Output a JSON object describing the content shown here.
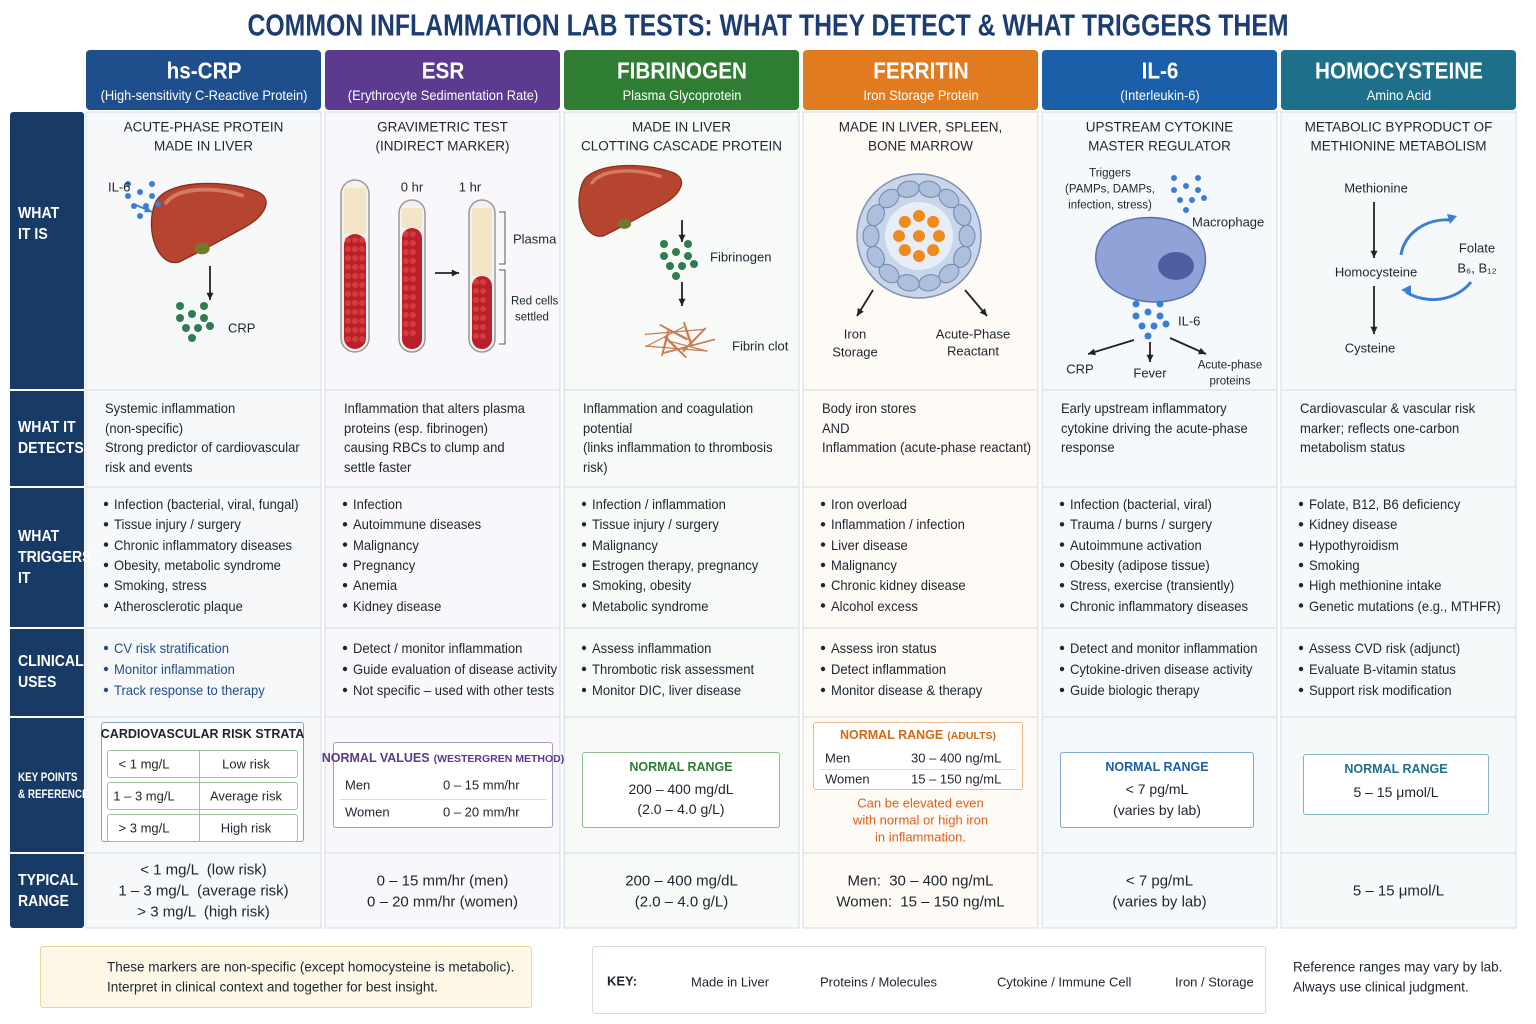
{
  "title": "COMMON INFLAMMATION LAB TESTS: WHAT THEY DETECT & WHAT TRIGGERS THEM",
  "row_labels": [
    [
      "WHAT",
      "IT IS"
    ],
    [
      "WHAT IT",
      "DETECTS"
    ],
    [
      "WHAT",
      "TRIGGERS",
      "IT"
    ],
    [
      "CLINICAL",
      "USES"
    ],
    [
      "KEY POINTS",
      "& REFERENCE"
    ],
    [
      "TYPICAL",
      "RANGE"
    ]
  ],
  "columns": [
    {
      "name": "hs-CRP",
      "subtitle": "(High-sensitivity C-Reactive Protein)",
      "color": "#1f4e8c",
      "what_it_is": [
        "ACUTE-PHASE PROTEIN",
        "MADE IN LIVER"
      ],
      "diagram_labels": [
        "IL-6",
        "CRP"
      ],
      "detects": [
        "Systemic inflammation",
        "(non-specific)",
        "Strong predictor of cardiovascular",
        "risk and events"
      ],
      "triggers": [
        "Infection (bacterial, viral, fungal)",
        "Tissue injury / surgery",
        "Chronic inflammatory diseases",
        "Obesity, metabolic syndrome",
        "Smoking, stress",
        "Atherosclerotic plaque"
      ],
      "uses": [
        "CV risk stratification",
        "Monitor inflammation",
        "Track response to therapy"
      ],
      "key_box": {
        "title": "CARDIOVASCULAR RISK STRATA",
        "rows": [
          [
            "< 1 mg/L",
            "Low risk"
          ],
          [
            "1 – 3 mg/L",
            "Average risk"
          ],
          [
            "> 3 mg/L",
            "High risk"
          ]
        ]
      },
      "typical_range": [
        "< 1 mg/L  (low risk)",
        "1 – 3 mg/L  (average risk)",
        "> 3 mg/L  (high risk)"
      ]
    },
    {
      "name": "ESR",
      "subtitle": "(Erythrocyte Sedimentation Rate)",
      "color": "#5b3a8f",
      "what_it_is": [
        "GRAVIMETRIC TEST",
        "(INDIRECT MARKER)"
      ],
      "diagram_labels": [
        "0 hr",
        "1 hr",
        "Plasma",
        "Red cells",
        "settled"
      ],
      "detects": [
        "Inflammation that alters plasma",
        "proteins (esp. fibrinogen)",
        "causing RBCs to clump and",
        "settle faster"
      ],
      "triggers": [
        "Infection",
        "Autoimmune diseases",
        "Malignancy",
        "Pregnancy",
        "Anemia",
        "Kidney disease"
      ],
      "uses": [
        "Detect / monitor inflammation",
        "Guide evaluation of disease activity",
        "Not specific – used with other tests"
      ],
      "key_box": {
        "title": "NORMAL VALUES",
        "title_note": "(WESTERGREN METHOD)",
        "rows": [
          [
            "Men",
            "0 – 15 mm/hr"
          ],
          [
            "Women",
            "0 – 20 mm/hr"
          ]
        ]
      },
      "typical_range": [
        "0 – 15 mm/hr (men)",
        "0 – 20 mm/hr (women)"
      ]
    },
    {
      "name": "FIBRINOGEN",
      "subtitle": "Plasma Glycoprotein",
      "color": "#2e7d32",
      "what_it_is": [
        "MADE IN LIVER",
        "CLOTTING CASCADE PROTEIN"
      ],
      "diagram_labels": [
        "Fibrinogen",
        "Fibrin clot"
      ],
      "detects": [
        "Inflammation and coagulation",
        "potential",
        "(links inflammation to thrombosis",
        "risk)"
      ],
      "triggers": [
        "Infection / inflammation",
        "Tissue injury / surgery",
        "Malignancy",
        "Estrogen therapy, pregnancy",
        "Smoking, obesity",
        "Metabolic syndrome"
      ],
      "uses": [
        "Assess inflammation",
        "Thrombotic risk assessment",
        "Monitor DIC, liver disease"
      ],
      "key_box": {
        "title": "NORMAL RANGE",
        "lines": [
          "200 – 400 mg/dL",
          "(2.0 – 4.0 g/L)"
        ]
      },
      "typical_range": [
        "200 – 400 mg/dL",
        "(2.0 – 4.0 g/L)"
      ]
    },
    {
      "name": "FERRITIN",
      "subtitle": "Iron Storage Protein",
      "color": "#e07b1f",
      "what_it_is": [
        "MADE IN LIVER, SPLEEN,",
        "BONE MARROW"
      ],
      "diagram_labels": [
        "Iron",
        "Storage",
        "Acute-Phase",
        "Reactant"
      ],
      "detects": [
        "Body iron stores",
        "AND",
        "Inflammation (acute-phase reactant)"
      ],
      "triggers": [
        "Iron overload",
        "Inflammation / infection",
        "Liver disease",
        "Malignancy",
        "Chronic kidney disease",
        "Alcohol excess"
      ],
      "uses": [
        "Assess iron status",
        "Detect inflammation",
        "Monitor disease & therapy"
      ],
      "key_box": {
        "title": "NORMAL RANGE",
        "title_note": "(ADULTS)",
        "rows": [
          [
            "Men",
            "30 – 400 ng/mL"
          ],
          [
            "Women",
            "15 – 150 ng/mL"
          ]
        ],
        "note": [
          "Can be elevated even",
          "with normal or high iron",
          "in inflammation."
        ]
      },
      "typical_range": [
        "Men:  30 – 400 ng/mL",
        "Women:  15 – 150 ng/mL"
      ]
    },
    {
      "name": "IL-6",
      "subtitle": "(Interleukin-6)",
      "color": "#1a5fa8",
      "what_it_is": [
        "UPSTREAM CYTOKINE",
        "MASTER REGULATOR"
      ],
      "diagram_labels": [
        "Triggers",
        "(PAMPs, DAMPs,",
        "infection, stress)",
        "Macrophage",
        "IL-6",
        "CRP",
        "Fever",
        "Acute-phase",
        "proteins"
      ],
      "detects": [
        "Early upstream inflammatory",
        "cytokine driving the acute-phase",
        "response"
      ],
      "triggers": [
        "Infection (bacterial, viral)",
        "Trauma / burns / surgery",
        "Autoimmune activation",
        "Obesity (adipose tissue)",
        "Stress, exercise (transiently)",
        "Chronic inflammatory diseases"
      ],
      "uses": [
        "Detect and monitor inflammation",
        "Cytokine-driven disease activity",
        "Guide biologic therapy"
      ],
      "key_box": {
        "title": "NORMAL RANGE",
        "lines": [
          "< 7 pg/mL",
          "(varies by lab)"
        ]
      },
      "typical_range": [
        "< 7 pg/mL",
        "(varies by lab)"
      ]
    },
    {
      "name": "HOMOCYSTEINE",
      "subtitle": "Amino Acid",
      "color": "#1e6f8a",
      "what_it_is": [
        "METABOLIC BYPRODUCT OF",
        "METHIONINE METABOLISM"
      ],
      "diagram_labels": [
        "Methionine",
        "Homocysteine",
        "Cysteine",
        "Folate",
        "B₆, B₁₂"
      ],
      "detects": [
        "Cardiovascular & vascular risk",
        "marker; reflects one-carbon",
        "metabolism status"
      ],
      "triggers": [
        "Folate, B12, B6 deficiency",
        "Kidney disease",
        "Hypothyroidism",
        "Smoking",
        "High methionine intake",
        "Genetic mutations (e.g., MTHFR)"
      ],
      "uses": [
        "Assess CVD risk (adjunct)",
        "Evaluate B-vitamin status",
        "Support risk modification"
      ],
      "key_box": {
        "title": "NORMAL RANGE",
        "lines": [
          "5 – 15 μmol/L"
        ]
      },
      "typical_range": [
        "5 – 15 μmol/L"
      ]
    }
  ],
  "footer": {
    "note": [
      "These markers are non-specific (except homocysteine is metabolic).",
      "Interpret in clinical context and together for best insight."
    ],
    "key_label": "KEY:",
    "key_items": [
      "Made in Liver",
      "Proteins / Molecules",
      "Cytokine / Immune Cell",
      "Iron / Storage"
    ],
    "disclaimer": [
      "Reference ranges may vary by lab.",
      "Always use clinical judgment."
    ]
  }
}
